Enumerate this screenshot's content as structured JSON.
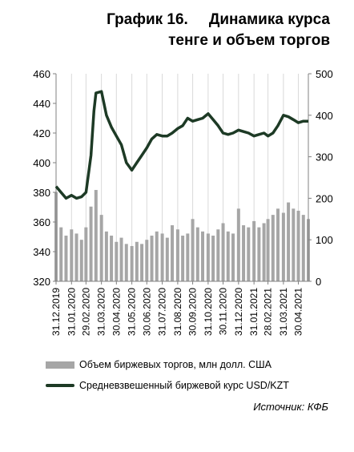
{
  "title": {
    "number": "График 16.",
    "line1": "Динамика курса",
    "line2": "тенге и объем торгов"
  },
  "source": "Источник: КФБ",
  "colors": {
    "bars": "#a6a6a6",
    "line": "#1d3a25",
    "grid": "#d9d9d9"
  },
  "chart_data": {
    "type": "line",
    "title": "Динамика курса тенге и объем торгов",
    "x_tick_labels": [
      "31.12.2019",
      "31.01.2020",
      "29.02.2020",
      "31.03.2020",
      "30.04.2020",
      "31.05.2020",
      "30.06.2020",
      "31.07.2020",
      "31.08.2020",
      "30.09.2020",
      "31.10.2020",
      "30.11.2020",
      "31.12.2020",
      "31.01.2021",
      "28.02.2021",
      "31.03.2021",
      "30.04.2021"
    ],
    "y_left": {
      "min": 320,
      "max": 460,
      "step": 20
    },
    "y_right": {
      "min": 0,
      "max": 500,
      "step": 100
    },
    "grid": "vertical",
    "legend_position": "bottom",
    "series": [
      {
        "name": "Объем биржевых торгов, млн долл. США",
        "type": "bar",
        "axis": "right",
        "dates": [
          "2019-12-31",
          "2020-01-10",
          "2020-01-20",
          "2020-01-31",
          "2020-02-10",
          "2020-02-20",
          "2020-02-29",
          "2020-03-10",
          "2020-03-20",
          "2020-03-31",
          "2020-04-10",
          "2020-04-20",
          "2020-04-30",
          "2020-05-10",
          "2020-05-20",
          "2020-05-31",
          "2020-06-10",
          "2020-06-20",
          "2020-06-30",
          "2020-07-10",
          "2020-07-20",
          "2020-07-31",
          "2020-08-10",
          "2020-08-20",
          "2020-08-31",
          "2020-09-10",
          "2020-09-20",
          "2020-09-30",
          "2020-10-10",
          "2020-10-20",
          "2020-10-31",
          "2020-11-10",
          "2020-11-20",
          "2020-11-30",
          "2020-12-10",
          "2020-12-20",
          "2020-12-31",
          "2021-01-10",
          "2021-01-20",
          "2021-01-31",
          "2021-02-10",
          "2021-02-20",
          "2021-02-28",
          "2021-03-10",
          "2021-03-20",
          "2021-03-31",
          "2021-04-10",
          "2021-04-20",
          "2021-04-30",
          "2021-05-10",
          "2021-05-20"
        ],
        "values": [
          215,
          130,
          110,
          125,
          115,
          100,
          130,
          180,
          220,
          160,
          120,
          110,
          95,
          105,
          90,
          85,
          95,
          90,
          100,
          110,
          120,
          115,
          105,
          135,
          125,
          110,
          115,
          150,
          130,
          120,
          115,
          110,
          125,
          140,
          120,
          115,
          175,
          135,
          130,
          145,
          130,
          140,
          150,
          160,
          175,
          165,
          190,
          175,
          170,
          160,
          150
        ]
      },
      {
        "name": "Средневзвешенный биржевой курс USD/KZT",
        "type": "line",
        "axis": "left",
        "dates": [
          "2019-12-31",
          "2020-01-10",
          "2020-01-20",
          "2020-01-31",
          "2020-02-10",
          "2020-02-20",
          "2020-02-29",
          "2020-03-10",
          "2020-03-16",
          "2020-03-20",
          "2020-03-31",
          "2020-04-10",
          "2020-04-20",
          "2020-04-30",
          "2020-05-10",
          "2020-05-20",
          "2020-05-31",
          "2020-06-10",
          "2020-06-20",
          "2020-06-30",
          "2020-07-10",
          "2020-07-20",
          "2020-07-31",
          "2020-08-10",
          "2020-08-20",
          "2020-08-31",
          "2020-09-10",
          "2020-09-20",
          "2020-09-30",
          "2020-10-10",
          "2020-10-20",
          "2020-10-31",
          "2020-11-10",
          "2020-11-20",
          "2020-11-30",
          "2020-12-10",
          "2020-12-20",
          "2020-12-31",
          "2021-01-10",
          "2021-01-20",
          "2021-01-31",
          "2021-02-10",
          "2021-02-20",
          "2021-02-28",
          "2021-03-10",
          "2021-03-20",
          "2021-03-31",
          "2021-04-10",
          "2021-04-20",
          "2021-04-30",
          "2021-05-10",
          "2021-05-20"
        ],
        "values": [
          384,
          380,
          376,
          378,
          376,
          377,
          380,
          405,
          435,
          447,
          448,
          432,
          424,
          418,
          412,
          400,
          395,
          400,
          405,
          410,
          416,
          419,
          418,
          418,
          420,
          423,
          425,
          430,
          428,
          429,
          430,
          433,
          429,
          425,
          420,
          419,
          420,
          422,
          421,
          420,
          418,
          419,
          420,
          418,
          420,
          425,
          432,
          431,
          429,
          427,
          428,
          428
        ]
      }
    ]
  }
}
